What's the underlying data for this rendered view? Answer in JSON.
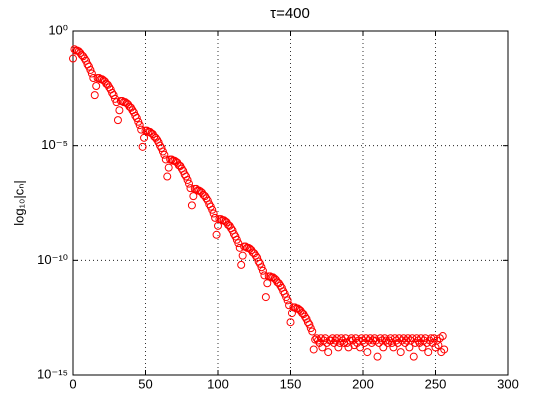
{
  "chart_data": {
    "type": "scatter",
    "title": "τ=400",
    "ylabel": "log₁₀|cₙ|",
    "yscale": "log",
    "grid": true,
    "color": "#ff0000",
    "xlim": [
      0,
      300
    ],
    "xticks": [
      0,
      50,
      100,
      150,
      200,
      250,
      300
    ],
    "ylim": [
      1e-15,
      1
    ],
    "yticks": [
      {
        "value": 1,
        "label": "10⁰"
      },
      {
        "value": 1e-05,
        "label": "10⁻⁵"
      },
      {
        "value": 1e-10,
        "label": "10⁻¹⁰"
      },
      {
        "value": 1e-15,
        "label": "10⁻¹⁵"
      }
    ],
    "x": [
      0,
      1,
      2,
      3,
      4,
      5,
      6,
      7,
      8,
      9,
      10,
      11,
      12,
      13,
      14,
      15,
      16,
      17,
      18,
      19,
      20,
      21,
      22,
      23,
      24,
      25,
      26,
      27,
      28,
      29,
      30,
      31,
      32,
      33,
      34,
      35,
      36,
      37,
      38,
      39,
      40,
      41,
      42,
      43,
      44,
      45,
      46,
      47,
      48,
      49,
      50,
      51,
      52,
      53,
      54,
      55,
      56,
      57,
      58,
      59,
      60,
      61,
      62,
      63,
      64,
      65,
      66,
      67,
      68,
      69,
      70,
      71,
      72,
      73,
      74,
      75,
      76,
      77,
      78,
      79,
      80,
      81,
      82,
      83,
      84,
      85,
      86,
      87,
      88,
      89,
      90,
      91,
      92,
      93,
      94,
      95,
      96,
      97,
      98,
      99,
      100,
      101,
      102,
      103,
      104,
      105,
      106,
      107,
      108,
      109,
      110,
      111,
      112,
      113,
      114,
      115,
      116,
      117,
      118,
      119,
      120,
      121,
      122,
      123,
      124,
      125,
      126,
      127,
      128,
      129,
      130,
      131,
      132,
      133,
      134,
      135,
      136,
      137,
      138,
      139,
      140,
      141,
      142,
      143,
      144,
      145,
      146,
      147,
      148,
      149,
      150,
      151,
      152,
      153,
      154,
      155,
      156,
      157,
      158,
      159,
      160,
      161,
      162,
      163,
      164,
      165,
      166,
      167,
      168,
      169,
      170,
      171,
      172,
      173,
      174,
      175,
      176,
      177,
      178,
      179,
      180,
      181,
      182,
      183,
      184,
      185,
      186,
      187,
      188,
      189,
      190,
      191,
      192,
      193,
      194,
      195,
      196,
      197,
      198,
      199,
      200,
      201,
      202,
      203,
      204,
      205,
      206,
      207,
      208,
      209,
      210,
      211,
      212,
      213,
      214,
      215,
      216,
      217,
      218,
      219,
      220,
      221,
      222,
      223,
      224,
      225,
      226,
      227,
      228,
      229,
      230,
      231,
      232,
      233,
      234,
      235,
      236,
      237,
      238,
      239,
      240,
      241,
      242,
      243,
      244,
      245,
      246,
      247,
      248,
      249,
      250,
      251,
      252,
      253,
      254,
      255,
      256
    ],
    "values": [
      0.063,
      0.16,
      0.14,
      0.14,
      0.13,
      0.11,
      0.089,
      0.079,
      0.063,
      0.05,
      0.035,
      0.028,
      0.02,
      0.014,
      0.0089,
      0.0016,
      0.004,
      0.0089,
      0.0089,
      0.0079,
      0.0079,
      0.0071,
      0.0063,
      0.005,
      0.0045,
      0.0035,
      0.0028,
      0.002,
      0.0016,
      0.0011,
      0.00079,
      0.00013,
      0.00035,
      0.00089,
      0.00089,
      0.00079,
      0.00079,
      0.00071,
      0.00063,
      0.0005,
      0.00045,
      0.00035,
      0.00028,
      0.0002,
      0.00016,
      0.00011,
      7.9e-05,
      5e-05,
      8.9e-06,
      2.2e-05,
      4.5e-05,
      4.5e-05,
      4e-05,
      4e-05,
      3.5e-05,
      3.2e-05,
      2.5e-05,
      2.2e-05,
      1.8e-05,
      1.4e-05,
      1e-05,
      7.9e-06,
      5.6e-06,
      4e-06,
      2.5e-06,
      4.5e-07,
      1.1e-06,
      2.5e-06,
      2.5e-06,
      2.2e-06,
      2.2e-06,
      2e-06,
      1.8e-06,
      1.4e-06,
      1.3e-06,
      1e-06,
      7.9e-07,
      5.6e-07,
      4.5e-07,
      3.2e-07,
      2.2e-07,
      1.4e-07,
      2.5e-08,
      6.3e-08,
      1.3e-07,
      1.3e-07,
      1.1e-07,
      1.1e-07,
      1e-07,
      8.9e-08,
      7.1e-08,
      6.3e-08,
      5e-08,
      4e-08,
      2.8e-08,
      2.2e-08,
      1.6e-08,
      1.1e-08,
      7.1e-09,
      1.3e-09,
      3.2e-09,
      6.3e-09,
      6.3e-09,
      5.6e-09,
      5.6e-09,
      5e-09,
      4.5e-09,
      3.5e-09,
      3.2e-09,
      2.5e-09,
      2e-09,
      1.4e-09,
      1.1e-09,
      7.9e-10,
      5.6e-10,
      3.5e-10,
      6.3e-11,
      1.6e-10,
      4e-10,
      4e-10,
      3.5e-10,
      3.5e-10,
      3.2e-10,
      2.8e-10,
      2.2e-10,
      2e-10,
      1.6e-10,
      1.3e-10,
      8.9e-11,
      7.1e-11,
      5e-11,
      3.5e-11,
      2.2e-11,
      2.5e-12,
      1e-11,
      2e-11,
      2e-11,
      1.8e-11,
      1.8e-11,
      1.6e-11,
      1.4e-11,
      1.1e-11,
      1e-11,
      7.9e-12,
      6.3e-12,
      4.5e-12,
      3.5e-12,
      2.5e-12,
      1.8e-12,
      1.1e-12,
      2e-13,
      5e-13,
      8.9e-13,
      8.9e-13,
      7.9e-13,
      7.9e-13,
      7.1e-13,
      6.3e-13,
      5e-13,
      4.5e-13,
      3.5e-13,
      2.8e-13,
      2e-13,
      1.6e-13,
      1.1e-13,
      7.9e-14,
      1.3e-14,
      3.5e-14,
      4e-14,
      3.2e-14,
      2.5e-14,
      4e-14,
      1.6e-14,
      3.2e-14,
      4e-14,
      2.5e-14,
      1e-14,
      3.2e-14,
      3.2e-14,
      4e-14,
      2.5e-14,
      3.2e-14,
      4e-14,
      1.6e-14,
      2.5e-14,
      4e-14,
      3.2e-14,
      2.5e-14,
      4e-14,
      2.5e-14,
      1.6e-14,
      3.2e-14,
      4e-14,
      3.2e-14,
      2e-14,
      4e-14,
      2.5e-14,
      3.2e-14,
      1.6e-14,
      4e-14,
      3.2e-14,
      2.5e-14,
      4e-14,
      1e-14,
      3.2e-14,
      4e-14,
      2.5e-14,
      3.2e-14,
      4e-14,
      3.2e-14,
      6.3e-15,
      2.5e-14,
      4e-14,
      3.2e-14,
      1.6e-14,
      4e-14,
      3.2e-14,
      2.5e-14,
      3.2e-14,
      4e-14,
      2.5e-14,
      1.6e-14,
      4e-14,
      3.2e-14,
      2.5e-14,
      4e-14,
      1e-14,
      3.2e-14,
      4e-14,
      2.5e-14,
      3.2e-14,
      4e-14,
      1.6e-14,
      3.2e-14,
      4e-14,
      6.3e-15,
      2.5e-14,
      4e-14,
      3.2e-14,
      2.5e-14,
      4e-14,
      1.6e-14,
      3.2e-14,
      4e-14,
      2.5e-14,
      1e-14,
      3.2e-14,
      4e-14,
      2.5e-14,
      4e-14,
      1.6e-14,
      3.2e-14,
      2e-14,
      4e-14,
      1e-14,
      5e-14,
      1.3e-14
    ]
  }
}
